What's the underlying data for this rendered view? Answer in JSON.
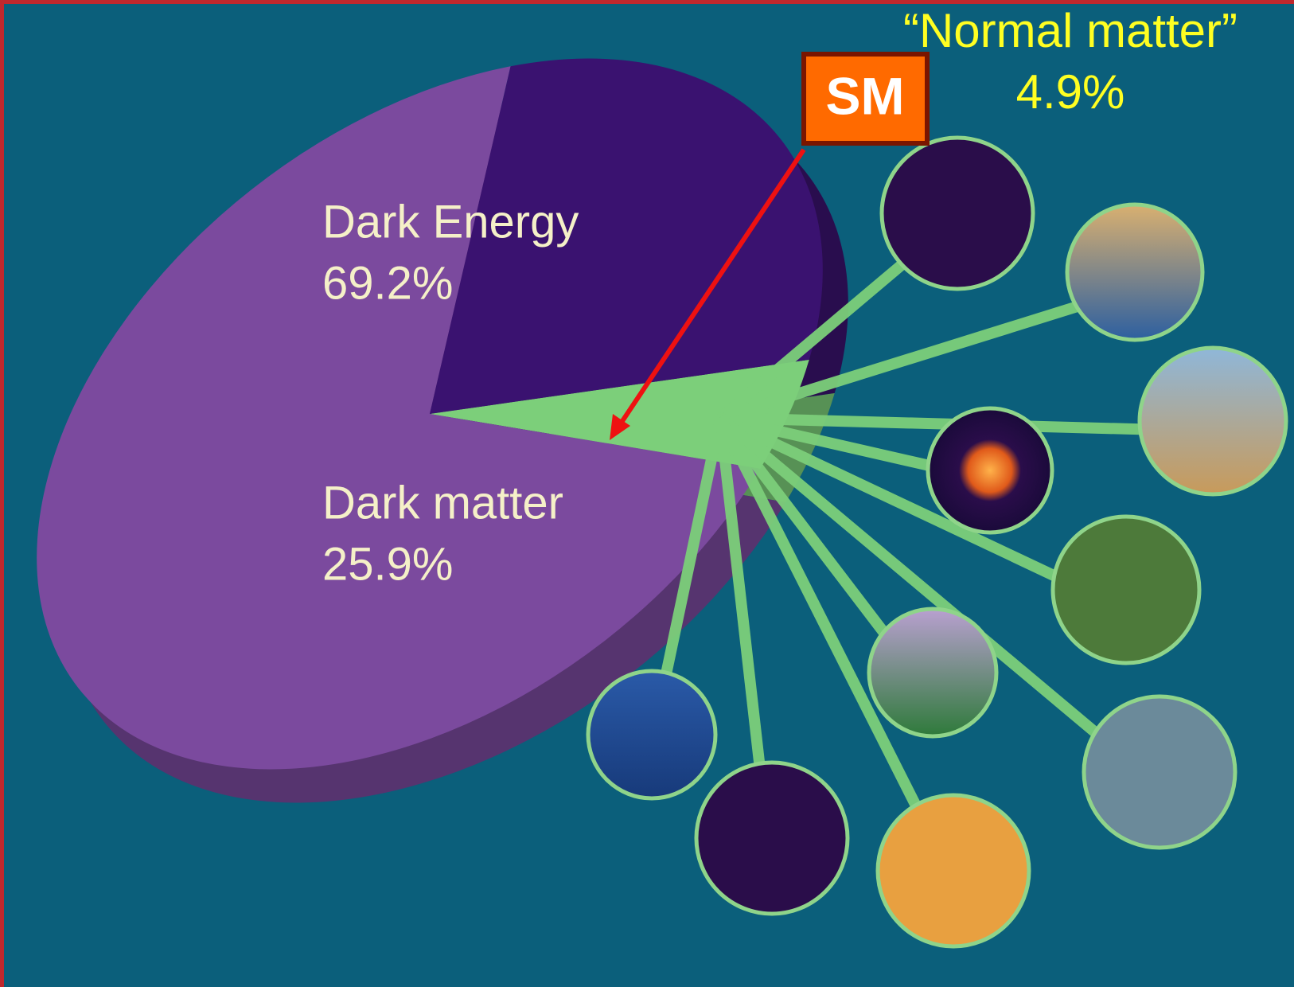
{
  "chart_data": {
    "type": "pie",
    "categories": [
      "Dark Energy",
      "Dark matter",
      "“Normal matter”"
    ],
    "values": [
      69.2,
      25.9,
      4.9
    ],
    "value_labels": [
      "69.2%",
      "25.9%",
      "4.9%"
    ],
    "colors": [
      "#7b4a9e",
      "#3a1270",
      "#7ccf7a"
    ],
    "annotation": "SM"
  }
}
